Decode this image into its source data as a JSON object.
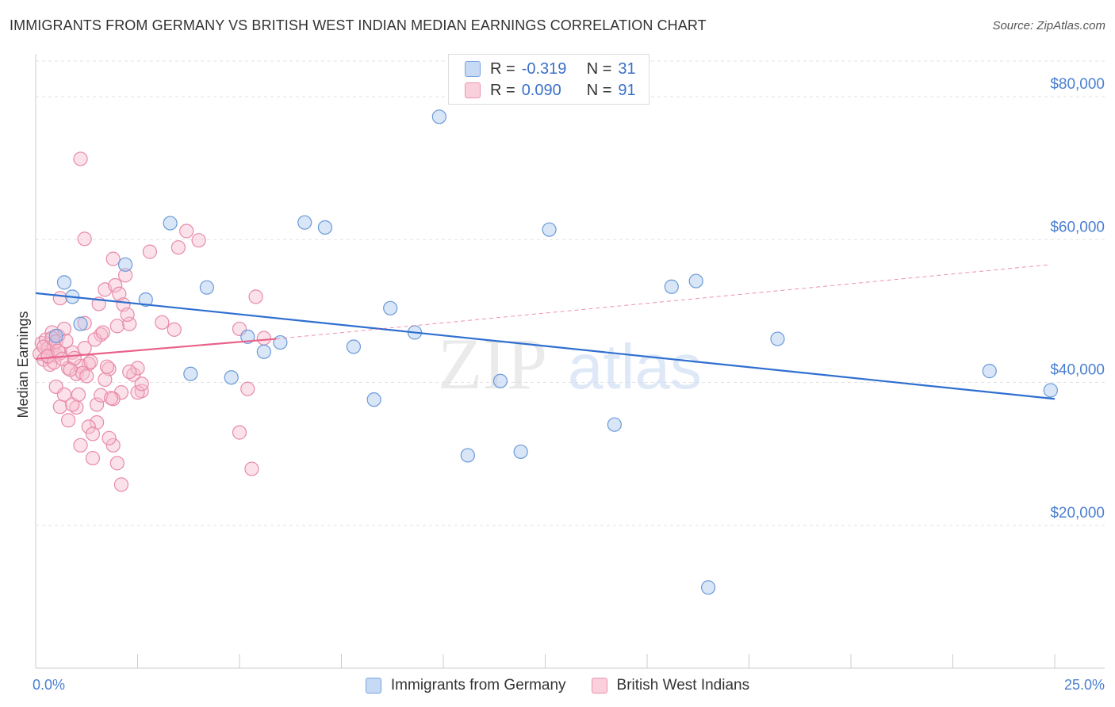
{
  "title": "IMMIGRANTS FROM GERMANY VS BRITISH WEST INDIAN MEDIAN EARNINGS CORRELATION CHART",
  "source": "Source: ZipAtlas.com",
  "watermark": {
    "zip": "ZIP",
    "atlas": "atlas"
  },
  "legend_top": {
    "rows": [
      {
        "r_label": "R =",
        "r_value": "-0.319",
        "n_label": "N =",
        "n_value": "31",
        "color": "#aac8f0"
      },
      {
        "r_label": "R =",
        "r_value": "0.090",
        "n_label": "N =",
        "n_value": "91",
        "color": "#f7bfd0"
      }
    ]
  },
  "chart_data": {
    "type": "scatter",
    "title": "IMMIGRANTS FROM GERMANY VS BRITISH WEST INDIAN MEDIAN EARNINGS CORRELATION CHART",
    "xlabel": "",
    "ylabel": "Median Earnings",
    "x_unit": "%",
    "xlim": [
      0,
      25
    ],
    "ylim": [
      0,
      85000
    ],
    "x_tick_labels": [
      "0.0%",
      "25.0%"
    ],
    "y_ticks": [
      20000,
      40000,
      60000,
      80000
    ],
    "y_tick_labels": [
      "$20,000",
      "$40,000",
      "$60,000",
      "$80,000"
    ],
    "grid": true,
    "legend_position": "top-center",
    "series": [
      {
        "name": "Immigrants from Germany",
        "color": "#aac8f0",
        "stroke": "#6a9ad8",
        "trend_color": "#2f6fd0",
        "r": -0.319,
        "n": 31,
        "trend": {
          "x": [
            0,
            25
          ],
          "y": [
            52500,
            37700
          ]
        },
        "points": [
          [
            0.5,
            46500
          ],
          [
            0.7,
            54000
          ],
          [
            0.9,
            52000
          ],
          [
            1.1,
            48200
          ],
          [
            2.2,
            56500
          ],
          [
            2.7,
            51600
          ],
          [
            3.3,
            62300
          ],
          [
            3.8,
            41200
          ],
          [
            4.2,
            53300
          ],
          [
            4.8,
            40700
          ],
          [
            5.2,
            46400
          ],
          [
            5.6,
            44300
          ],
          [
            6.0,
            45600
          ],
          [
            6.6,
            62400
          ],
          [
            7.1,
            61700
          ],
          [
            7.8,
            45000
          ],
          [
            8.3,
            37600
          ],
          [
            8.7,
            50400
          ],
          [
            9.3,
            47000
          ],
          [
            9.9,
            77200
          ],
          [
            10.6,
            29800
          ],
          [
            11.4,
            40200
          ],
          [
            11.9,
            30300
          ],
          [
            12.6,
            61400
          ],
          [
            14.2,
            34100
          ],
          [
            15.6,
            53400
          ],
          [
            16.2,
            54200
          ],
          [
            16.5,
            11300
          ],
          [
            18.2,
            46100
          ],
          [
            23.4,
            41600
          ],
          [
            24.9,
            38900
          ]
        ]
      },
      {
        "name": "British West Indians",
        "color": "#f7bfd0",
        "stroke": "#e88aa8",
        "trend_color": "#e8628a",
        "r": 0.09,
        "n": 91,
        "trend": {
          "x": [
            0,
            5.9
          ],
          "y": [
            43300,
            46100
          ]
        },
        "trend_ext": {
          "x": [
            5.9,
            24.9
          ],
          "y": [
            46100,
            56500
          ]
        },
        "points": [
          [
            0.1,
            44000
          ],
          [
            0.15,
            45500
          ],
          [
            0.2,
            43200
          ],
          [
            0.25,
            46000
          ],
          [
            0.3,
            44800
          ],
          [
            0.35,
            42500
          ],
          [
            0.4,
            47000
          ],
          [
            0.45,
            45200
          ],
          [
            0.5,
            43800
          ],
          [
            0.55,
            46500
          ],
          [
            0.6,
            44100
          ],
          [
            0.2,
            45000
          ],
          [
            0.3,
            43600
          ],
          [
            0.4,
            46200
          ],
          [
            0.5,
            45700
          ],
          [
            0.6,
            51800
          ],
          [
            0.7,
            47500
          ],
          [
            0.8,
            42000
          ],
          [
            0.9,
            44200
          ],
          [
            1.0,
            36500
          ],
          [
            1.1,
            31200
          ],
          [
            1.2,
            48300
          ],
          [
            1.3,
            42600
          ],
          [
            1.4,
            29400
          ],
          [
            1.5,
            34400
          ],
          [
            1.6,
            46700
          ],
          [
            1.7,
            53000
          ],
          [
            1.8,
            41900
          ],
          [
            1.9,
            31200
          ],
          [
            2.0,
            47900
          ],
          [
            2.1,
            38600
          ],
          [
            2.2,
            55000
          ],
          [
            2.3,
            48200
          ],
          [
            2.4,
            41100
          ],
          [
            2.5,
            42000
          ],
          [
            2.6,
            38800
          ],
          [
            1.1,
            71300
          ],
          [
            1.2,
            60100
          ],
          [
            1.9,
            57300
          ],
          [
            2.8,
            58300
          ],
          [
            3.1,
            48400
          ],
          [
            3.4,
            47400
          ],
          [
            3.5,
            58900
          ],
          [
            3.7,
            61200
          ],
          [
            4.0,
            59900
          ],
          [
            5.0,
            33000
          ],
          [
            5.0,
            47500
          ],
          [
            5.2,
            39100
          ],
          [
            5.3,
            27900
          ],
          [
            5.4,
            52000
          ],
          [
            5.6,
            46200
          ],
          [
            0.5,
            39400
          ],
          [
            0.6,
            36600
          ],
          [
            0.7,
            38300
          ],
          [
            0.8,
            34700
          ],
          [
            0.9,
            36900
          ],
          [
            1.0,
            41200
          ],
          [
            1.1,
            42300
          ],
          [
            1.2,
            44800
          ],
          [
            1.3,
            33800
          ],
          [
            1.4,
            32800
          ],
          [
            1.5,
            36900
          ],
          [
            1.6,
            38200
          ],
          [
            1.7,
            40400
          ],
          [
            1.8,
            32200
          ],
          [
            1.9,
            37700
          ],
          [
            2.0,
            28700
          ],
          [
            2.1,
            25700
          ],
          [
            2.3,
            41500
          ],
          [
            2.5,
            38600
          ],
          [
            2.6,
            39800
          ],
          [
            0.3,
            43700
          ],
          [
            0.45,
            42800
          ],
          [
            0.55,
            44400
          ],
          [
            0.65,
            43300
          ],
          [
            0.75,
            45800
          ],
          [
            0.85,
            41800
          ],
          [
            0.95,
            43400
          ],
          [
            1.05,
            38300
          ],
          [
            1.15,
            41300
          ],
          [
            1.25,
            40900
          ],
          [
            1.35,
            42900
          ],
          [
            1.45,
            46000
          ],
          [
            1.55,
            51000
          ],
          [
            1.65,
            47000
          ],
          [
            1.75,
            42200
          ],
          [
            1.85,
            37800
          ],
          [
            1.95,
            53600
          ],
          [
            2.05,
            52400
          ],
          [
            2.15,
            50900
          ],
          [
            2.25,
            49500
          ]
        ]
      }
    ]
  }
}
